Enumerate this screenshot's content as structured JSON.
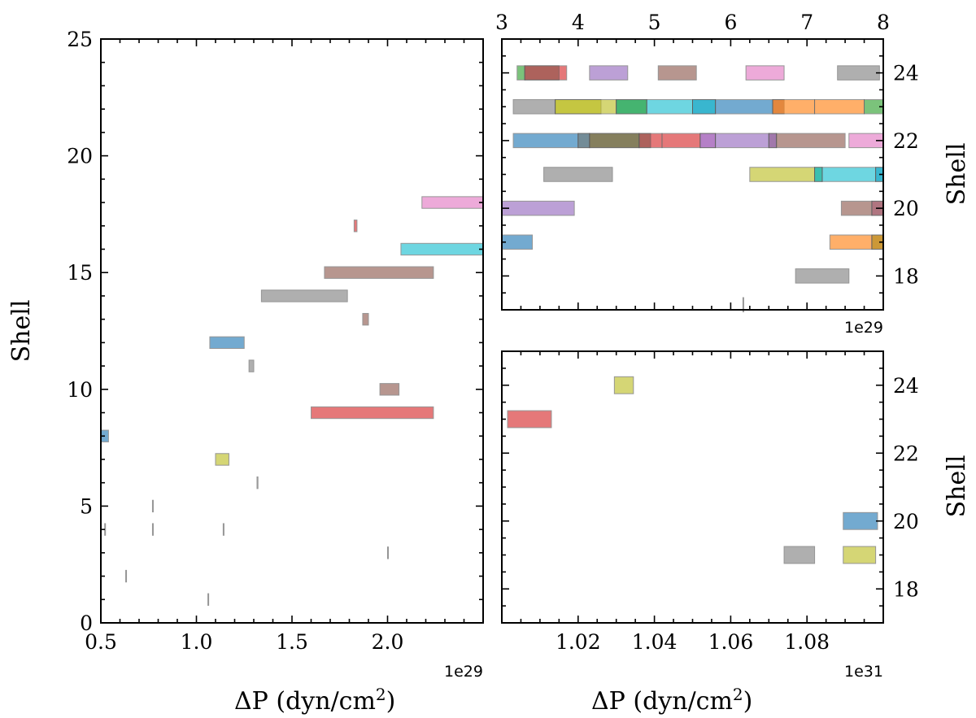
{
  "chart_data": [
    {
      "type": "bar",
      "orientation": "horizontal-range",
      "title": "",
      "xlabel": "ΔP (dyn/cm²)",
      "xlabel_main": "ΔP (dyn/cm",
      "xlabel_sup": "2",
      "xlabel_end": ")",
      "ylabel": "Shell",
      "x_offset_text": "1e29",
      "xlim": [
        0.5,
        2.5
      ],
      "ylim": [
        0,
        25
      ],
      "xticks": [
        {
          "v": 0.5,
          "label": "0.5"
        },
        {
          "v": 1.0,
          "label": "1.0"
        },
        {
          "v": 1.5,
          "label": "1.5"
        },
        {
          "v": 2.0,
          "label": "2.0"
        }
      ],
      "yticks": [
        {
          "v": 0,
          "label": "0"
        },
        {
          "v": 5,
          "label": "5"
        },
        {
          "v": 10,
          "label": "10"
        },
        {
          "v": 15,
          "label": "15"
        },
        {
          "v": 20,
          "label": "20"
        },
        {
          "v": 25,
          "label": "25"
        }
      ],
      "bars": [
        {
          "shell": 18,
          "x0": 2.18,
          "x1": 2.5,
          "color": "#e377c2"
        },
        {
          "shell": 17,
          "x0": 1.825,
          "x1": 1.84,
          "color": "#d62728"
        },
        {
          "shell": 16,
          "x0": 2.07,
          "x1": 2.5,
          "color": "#17becf"
        },
        {
          "shell": 15,
          "x0": 1.67,
          "x1": 2.24,
          "color": "#8c564b"
        },
        {
          "shell": 14,
          "x0": 1.34,
          "x1": 1.79,
          "color": "#7f7f7f"
        },
        {
          "shell": 13,
          "x0": 1.87,
          "x1": 1.9,
          "color": "#8c564b"
        },
        {
          "shell": 12,
          "x0": 1.07,
          "x1": 1.25,
          "color": "#1f77b4"
        },
        {
          "shell": 11,
          "x0": 1.275,
          "x1": 1.3,
          "color": "#7f7f7f"
        },
        {
          "shell": 10,
          "x0": 1.96,
          "x1": 2.06,
          "color": "#8c564b"
        },
        {
          "shell": 9,
          "x0": 1.6,
          "x1": 2.24,
          "color": "#d62728"
        },
        {
          "shell": 8,
          "x0": 0.5,
          "x1": 0.54,
          "color": "#1f77b4"
        },
        {
          "shell": 7,
          "x0": 1.1,
          "x1": 1.17,
          "color": "#bcbd22"
        },
        {
          "shell": 6,
          "x0": 1.317,
          "x1": 1.322,
          "color": "#7f7f7f"
        },
        {
          "shell": 5,
          "x0": 0.77,
          "x1": 0.774,
          "color": "#7f7f7f"
        },
        {
          "shell": 4,
          "x0": 0.52,
          "x1": 0.523,
          "color": "#7f7f7f"
        },
        {
          "shell": 4,
          "x0": 0.77,
          "x1": 0.774,
          "color": "#7f7f7f"
        },
        {
          "shell": 4,
          "x0": 1.14,
          "x1": 1.144,
          "color": "#7f7f7f"
        },
        {
          "shell": 3,
          "x0": 2.0,
          "x1": 2.003,
          "color": "#7f7f7f"
        },
        {
          "shell": 2,
          "x0": 0.63,
          "x1": 0.633,
          "color": "#7f7f7f"
        },
        {
          "shell": 1,
          "x0": 1.06,
          "x1": 1.063,
          "color": "#7f7f7f"
        }
      ]
    },
    {
      "type": "bar",
      "orientation": "horizontal-range",
      "title": "",
      "xlabel": "",
      "ylabel": "Shell",
      "x_offset_text": "1e29",
      "xaxis_position": "top",
      "yaxis_position": "right",
      "xlim": [
        3,
        8
      ],
      "ylim": [
        17,
        25
      ],
      "xticks": [
        {
          "v": 3,
          "label": "3"
        },
        {
          "v": 4,
          "label": "4"
        },
        {
          "v": 5,
          "label": "5"
        },
        {
          "v": 6,
          "label": "6"
        },
        {
          "v": 7,
          "label": "7"
        },
        {
          "v": 8,
          "label": "8"
        }
      ],
      "yticks": [
        {
          "v": 18,
          "label": "18"
        },
        {
          "v": 20,
          "label": "20"
        },
        {
          "v": 22,
          "label": "22"
        },
        {
          "v": 24,
          "label": "24"
        }
      ],
      "bars": [
        {
          "shell": 24,
          "x0": 3.2,
          "x1": 3.3,
          "color": "#2ca02c"
        },
        {
          "shell": 24,
          "x0": 3.3,
          "x1": 3.85,
          "color": "#d62728"
        },
        {
          "shell": 24,
          "x0": 3.3,
          "x1": 3.75,
          "color": "#8c564b"
        },
        {
          "shell": 24,
          "x0": 4.15,
          "x1": 4.65,
          "color": "#9467bd"
        },
        {
          "shell": 24,
          "x0": 5.05,
          "x1": 5.55,
          "color": "#8c564b"
        },
        {
          "shell": 24,
          "x0": 6.2,
          "x1": 6.7,
          "color": "#e377c2"
        },
        {
          "shell": 24,
          "x0": 7.4,
          "x1": 7.95,
          "color": "#7f7f7f"
        },
        {
          "shell": 23,
          "x0": 3.15,
          "x1": 3.7,
          "color": "#7f7f7f"
        },
        {
          "shell": 23,
          "x0": 3.7,
          "x1": 4.3,
          "color": "#bcbd22"
        },
        {
          "shell": 23,
          "x0": 3.7,
          "x1": 4.5,
          "color": "#bcbd22"
        },
        {
          "shell": 23,
          "x0": 4.5,
          "x1": 4.9,
          "color": "#17becf"
        },
        {
          "shell": 23,
          "x0": 4.5,
          "x1": 4.9,
          "color": "#2ca02c"
        },
        {
          "shell": 23,
          "x0": 4.9,
          "x1": 5.5,
          "color": "#17becf"
        },
        {
          "shell": 23,
          "x0": 5.5,
          "x1": 5.8,
          "color": "#1f77b4"
        },
        {
          "shell": 23,
          "x0": 5.5,
          "x1": 5.8,
          "color": "#17becf"
        },
        {
          "shell": 23,
          "x0": 5.8,
          "x1": 6.55,
          "color": "#1f77b4"
        },
        {
          "shell": 23,
          "x0": 6.55,
          "x1": 6.7,
          "color": "#8c564b"
        },
        {
          "shell": 23,
          "x0": 6.55,
          "x1": 7.1,
          "color": "#ff7f0e"
        },
        {
          "shell": 23,
          "x0": 7.1,
          "x1": 7.75,
          "color": "#ff7f0e"
        },
        {
          "shell": 23,
          "x0": 7.75,
          "x1": 8.0,
          "color": "#2ca02c"
        },
        {
          "shell": 22,
          "x0": 3.15,
          "x1": 4.0,
          "color": "#1f77b4"
        },
        {
          "shell": 22,
          "x0": 4.0,
          "x1": 4.15,
          "color": "#ff7f0e"
        },
        {
          "shell": 22,
          "x0": 4.0,
          "x1": 4.15,
          "color": "#1f77b4"
        },
        {
          "shell": 22,
          "x0": 4.15,
          "x1": 4.8,
          "color": "#2ca02c"
        },
        {
          "shell": 22,
          "x0": 4.15,
          "x1": 4.8,
          "color": "#8c564b"
        },
        {
          "shell": 22,
          "x0": 4.8,
          "x1": 5.1,
          "color": "#d62728"
        },
        {
          "shell": 22,
          "x0": 4.8,
          "x1": 4.95,
          "color": "#8c564b"
        },
        {
          "shell": 22,
          "x0": 5.1,
          "x1": 5.6,
          "color": "#d62728"
        },
        {
          "shell": 22,
          "x0": 5.6,
          "x1": 5.8,
          "color": "#e377c2"
        },
        {
          "shell": 22,
          "x0": 5.6,
          "x1": 5.8,
          "color": "#9467bd"
        },
        {
          "shell": 22,
          "x0": 5.8,
          "x1": 6.5,
          "color": "#9467bd"
        },
        {
          "shell": 22,
          "x0": 6.5,
          "x1": 6.6,
          "color": "#8c564b"
        },
        {
          "shell": 22,
          "x0": 6.5,
          "x1": 6.6,
          "color": "#9467bd"
        },
        {
          "shell": 22,
          "x0": 6.6,
          "x1": 7.5,
          "color": "#8c564b"
        },
        {
          "shell": 22,
          "x0": 7.55,
          "x1": 8.0,
          "color": "#e377c2"
        },
        {
          "shell": 21,
          "x0": 3.55,
          "x1": 4.45,
          "color": "#7f7f7f"
        },
        {
          "shell": 21,
          "x0": 6.25,
          "x1": 7.1,
          "color": "#bcbd22"
        },
        {
          "shell": 21,
          "x0": 7.1,
          "x1": 7.2,
          "color": "#2ca02c"
        },
        {
          "shell": 21,
          "x0": 7.1,
          "x1": 7.2,
          "color": "#17becf"
        },
        {
          "shell": 21,
          "x0": 7.2,
          "x1": 7.9,
          "color": "#17becf"
        },
        {
          "shell": 21,
          "x0": 7.9,
          "x1": 8.0,
          "color": "#1f77b4"
        },
        {
          "shell": 21,
          "x0": 7.9,
          "x1": 8.0,
          "color": "#17becf"
        },
        {
          "shell": 20,
          "x0": 3.0,
          "x1": 3.95,
          "color": "#9467bd"
        },
        {
          "shell": 20,
          "x0": 7.45,
          "x1": 7.85,
          "color": "#8c564b"
        },
        {
          "shell": 20,
          "x0": 7.85,
          "x1": 8.0,
          "color": "#e377c2"
        },
        {
          "shell": 20,
          "x0": 7.85,
          "x1": 8.0,
          "color": "#8c564b"
        },
        {
          "shell": 19,
          "x0": 3.0,
          "x1": 3.4,
          "color": "#1f77b4"
        },
        {
          "shell": 19,
          "x0": 7.3,
          "x1": 7.85,
          "color": "#ff7f0e"
        },
        {
          "shell": 19,
          "x0": 7.85,
          "x1": 8.0,
          "color": "#2ca02c"
        },
        {
          "shell": 19,
          "x0": 7.85,
          "x1": 8.0,
          "color": "#ff7f0e"
        },
        {
          "shell": 18,
          "x0": 6.85,
          "x1": 7.55,
          "color": "#7f7f7f"
        },
        {
          "shell": 17.15,
          "x0": 6.16,
          "x1": 6.17,
          "color": "#7f7f7f"
        }
      ]
    },
    {
      "type": "bar",
      "orientation": "horizontal-range",
      "title": "",
      "xlabel": "ΔP (dyn/cm²)",
      "xlabel_main": "ΔP (dyn/cm",
      "xlabel_sup": "2",
      "xlabel_end": ")",
      "ylabel": "Shell",
      "x_offset_text": "1e31",
      "yaxis_position": "right",
      "xlim": [
        1.0,
        1.1
      ],
      "ylim": [
        17,
        25
      ],
      "xticks": [
        {
          "v": 1.02,
          "label": "1.02"
        },
        {
          "v": 1.04,
          "label": "1.04"
        },
        {
          "v": 1.06,
          "label": "1.06"
        },
        {
          "v": 1.08,
          "label": "1.08"
        }
      ],
      "yticks": [
        {
          "v": 18,
          "label": "18"
        },
        {
          "v": 20,
          "label": "20"
        },
        {
          "v": 22,
          "label": "22"
        },
        {
          "v": 24,
          "label": "24"
        }
      ],
      "bars": [
        {
          "shell": 24,
          "x0": 1.0295,
          "x1": 1.0345,
          "color": "#bcbd22"
        },
        {
          "shell": 23,
          "x0": 1.0015,
          "x1": 1.013,
          "color": "#d62728"
        },
        {
          "shell": 20,
          "x0": 1.0895,
          "x1": 1.0985,
          "color": "#1f77b4"
        },
        {
          "shell": 19,
          "x0": 1.074,
          "x1": 1.082,
          "color": "#7f7f7f"
        },
        {
          "shell": 19,
          "x0": 1.0895,
          "x1": 1.098,
          "color": "#bcbd22"
        }
      ]
    }
  ]
}
